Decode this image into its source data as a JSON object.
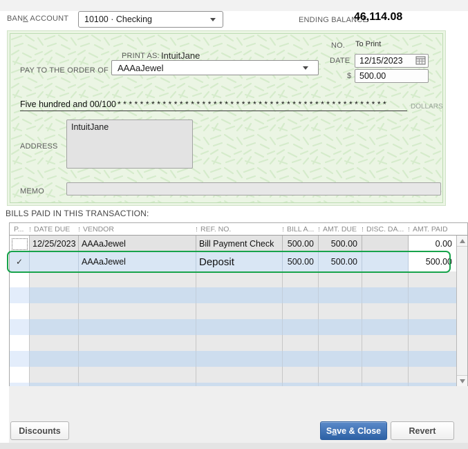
{
  "topbar": {
    "bank_account_label": {
      "pre": "BAN",
      "mnemonic": "K",
      "post": " ACCOUNT"
    },
    "bank_account_value": "10100 · Checking",
    "ending_balance_label": "ENDING BALANCE",
    "ending_balance_value": "46,114.08"
  },
  "check": {
    "print_as_label": "PRINT AS:",
    "print_as_value": "IntuitJane",
    "pay_to_order_label": "PAY TO THE ORDER OF",
    "payee_value": "AAAaJewel",
    "no_label": "NO.",
    "no_value": "To Print",
    "date_label": "DATE",
    "date_value": "12/15/2023",
    "currency_symbol": "$",
    "amount_value": "500.00",
    "amount_in_words": "Five hundred and 00/100",
    "amount_fill": "************************************************",
    "dollars_label": "DOLLARS",
    "address_label": "ADDRESS",
    "address_value": "IntuitJane",
    "memo_label": "MEMO",
    "memo_value": ""
  },
  "bills_table": {
    "title": "BILLS PAID IN THIS TRANSACTION:",
    "columns": [
      "P...",
      "DATE DUE",
      "VENDOR",
      "REF. NO.",
      "BILL A...",
      "AMT. DUE",
      "DISC. DA...",
      "AMT. PAID"
    ],
    "rows": [
      {
        "check": "",
        "date_due": "12/25/2023",
        "vendor": "AAAaJewel",
        "ref_no": "Bill Payment Check",
        "bill_amt": "500.00",
        "amt_due": "500.00",
        "disc_date": "",
        "amt_paid": "0.00"
      },
      {
        "check": "✓",
        "date_due": "",
        "vendor": "AAAaJewel",
        "ref_no": "Deposit",
        "bill_amt": "500.00",
        "amt_due": "500.00",
        "disc_date": "",
        "amt_paid": "500.00"
      }
    ],
    "empty_rows": 8
  },
  "footer": {
    "discounts_label": "Discounts",
    "save_and_close_label": {
      "pre": "S",
      "mnemonic": "a",
      "post": "ve & Close"
    },
    "revert_label": "Revert"
  },
  "colors": {
    "check_background": "#ebf5e4",
    "check_pattern": "#d5ebcb",
    "selected_row_border": "#17a34b",
    "selected_row_background": "#d9e6f4",
    "row_alt_gray": "#e9e9e9",
    "row_alt_blue": "#cdddee",
    "primary_button_blue": "#2d61a5"
  }
}
